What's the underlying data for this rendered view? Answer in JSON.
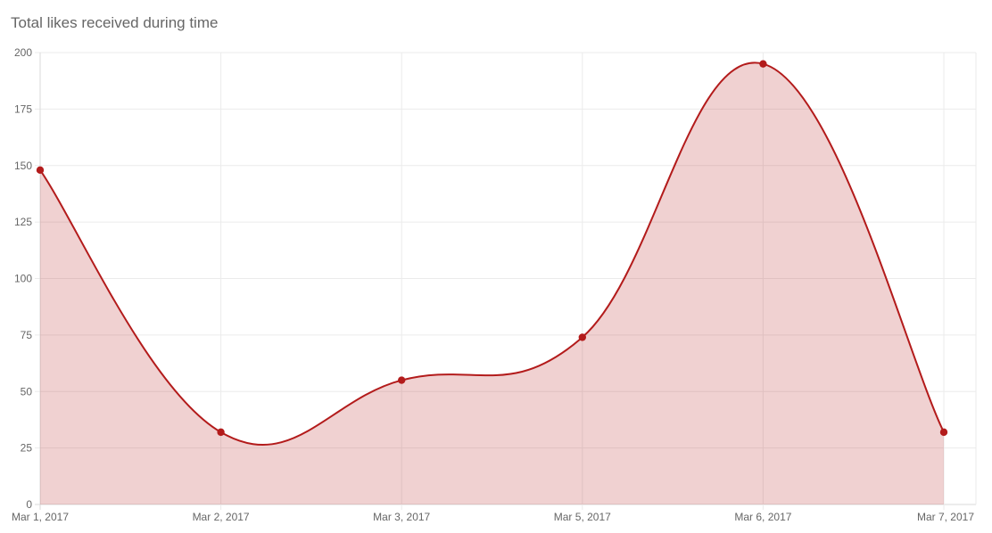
{
  "chart_data": {
    "type": "area",
    "title": "Total likes received during time",
    "categories": [
      "Mar 1, 2017",
      "Mar 2, 2017",
      "Mar 3, 2017",
      "Mar 5, 2017",
      "Mar 6, 2017",
      "Mar 7, 2017"
    ],
    "series": [
      {
        "values": [
          148,
          32,
          55,
          74,
          195,
          32
        ],
        "color": "#b31b1b",
        "fill_color": "rgba(179,27,27,0.2)"
      }
    ],
    "ylim": [
      0,
      200
    ],
    "yticks": [
      0,
      25,
      50,
      75,
      100,
      125,
      150,
      175,
      200
    ],
    "grid": true,
    "legend": "none",
    "curve": "smooth"
  }
}
